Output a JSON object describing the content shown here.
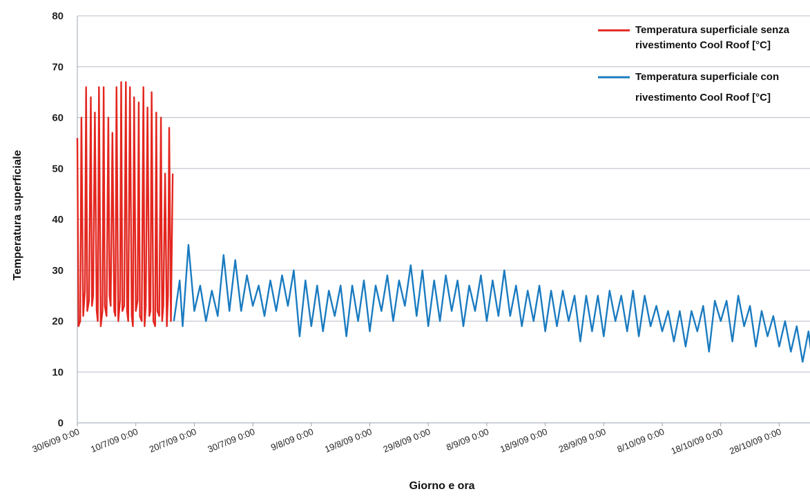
{
  "chart_data": {
    "type": "line",
    "xlabel": "Giorno e ora",
    "ylabel": "Temperatura superficiale",
    "ylim": [
      0,
      80
    ],
    "yticks": [
      0,
      10,
      20,
      30,
      40,
      50,
      60,
      70,
      80
    ],
    "xticks": [
      "30/6/09 0:00",
      "10/7/09 0:00",
      "20/7/09 0:00",
      "30/7/09 0:00",
      "9/8/09 0:00",
      "19/8/09 0:00",
      "29/8/09 0:00",
      "8/9/09 0:00",
      "18/9/09 0:00",
      "28/9/09 0:00",
      "8/10/09 0:00",
      "18/10/09 0:00",
      "28/10/09 0:00"
    ],
    "grid": true,
    "legend_position": "top-right",
    "series": [
      {
        "name": "Temperatura superficiale senza rivestimento Cool Roof [°C]",
        "color": "#e3261f",
        "x_days": [
          0,
          0.2,
          0.5,
          0.7,
          1,
          1.3,
          1.5,
          1.7,
          2,
          2.3,
          2.5,
          2.7,
          3,
          3.3,
          3.5,
          3.7,
          4,
          4.3,
          4.5,
          4.7,
          5,
          5.3,
          5.5,
          5.7,
          6,
          6.3,
          6.5,
          6.7,
          7,
          7.3,
          7.5,
          7.7,
          8,
          8.3,
          8.5,
          8.7,
          9,
          9.3,
          9.5,
          9.7,
          10,
          10.3,
          10.5,
          10.7,
          11,
          11.3,
          11.5,
          11.7,
          12,
          12.3,
          12.5,
          12.7,
          13,
          13.3,
          13.5,
          13.7,
          14,
          14.3,
          14.5,
          14.7,
          15,
          15.3,
          15.5,
          15.7,
          16,
          16.3
        ],
        "values": [
          56,
          19,
          20,
          60,
          21,
          26,
          66,
          22,
          24,
          64,
          23,
          25,
          61,
          22,
          20,
          66,
          19,
          22,
          66,
          23,
          21,
          60,
          25,
          23,
          57,
          22,
          21,
          66,
          20,
          24,
          67,
          22,
          23,
          67,
          22,
          20,
          66,
          21,
          19,
          64,
          22,
          24,
          63,
          21,
          20,
          66,
          19,
          23,
          62,
          21,
          22,
          65,
          20,
          19,
          61,
          22,
          21,
          60,
          20,
          23,
          49,
          19,
          25,
          58,
          20,
          49
        ]
      },
      {
        "name": "Temperatura superficiale con rivestimento Cool Roof [°C]",
        "color": "#1a7bc0",
        "x_days": [
          16.5,
          17.5,
          18,
          19,
          20,
          21,
          22,
          23,
          24,
          25,
          26,
          27,
          28,
          29,
          30,
          31,
          32,
          33,
          34,
          35,
          36,
          37,
          38,
          39,
          40,
          41,
          42,
          43,
          44,
          45,
          46,
          47,
          48,
          49,
          50,
          51,
          52,
          53,
          54,
          55,
          56,
          57,
          58,
          59,
          60,
          61,
          62,
          63,
          64,
          65,
          66,
          67,
          68,
          69,
          70,
          71,
          72,
          73,
          74,
          75,
          76,
          77,
          78,
          79,
          80,
          81,
          82,
          83,
          84,
          85,
          86,
          87,
          88,
          89,
          90,
          91,
          92,
          93,
          94,
          95,
          96,
          97,
          98,
          99,
          100,
          101,
          102,
          103,
          104,
          105,
          106,
          107,
          108,
          109,
          110,
          111,
          112,
          113,
          114,
          115,
          116,
          117,
          118,
          119,
          120,
          121,
          122,
          123,
          124,
          125,
          126,
          127,
          128,
          128.9
        ],
        "values": [
          20,
          28,
          19,
          35,
          22,
          27,
          20,
          26,
          21,
          33,
          22,
          32,
          22,
          29,
          23,
          27,
          21,
          28,
          22,
          29,
          23,
          30,
          17,
          28,
          19,
          27,
          18,
          26,
          21,
          27,
          17,
          27,
          20,
          28,
          18,
          27,
          22,
          29,
          20,
          28,
          23,
          31,
          21,
          30,
          19,
          28,
          20,
          29,
          22,
          28,
          19,
          27,
          22,
          29,
          20,
          28,
          21,
          30,
          21,
          27,
          19,
          26,
          20,
          27,
          18,
          26,
          19,
          26,
          20,
          25,
          16,
          25,
          18,
          25,
          17,
          26,
          20,
          25,
          18,
          26,
          17,
          25,
          19,
          23,
          18,
          22,
          16,
          22,
          15,
          22,
          18,
          23,
          14,
          24,
          20,
          24,
          16,
          25,
          19,
          23,
          15,
          22,
          17,
          21,
          15,
          20,
          14,
          19,
          12,
          18,
          9,
          17,
          13,
          13
        ]
      }
    ]
  }
}
